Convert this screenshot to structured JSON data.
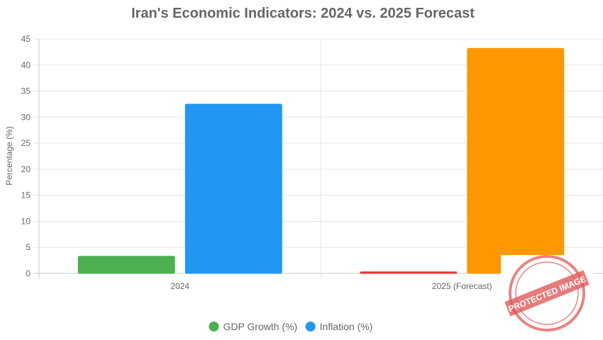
{
  "chart_data": {
    "type": "bar",
    "title": "Iran's Economic Indicators: 2024 vs. 2025 Forecast",
    "xlabel": "",
    "ylabel": "Percentage (%)",
    "categories": [
      "2024",
      "2025 (Forecast)"
    ],
    "ylim": [
      0,
      45
    ],
    "yticks": [
      0,
      5,
      10,
      15,
      20,
      25,
      30,
      35,
      40,
      45
    ],
    "grid": true,
    "legend_position": "bottom",
    "series": [
      {
        "name": "GDP Growth (%)",
        "values": [
          3.3,
          0.3
        ],
        "colors": [
          "#4caf50",
          "#e53935"
        ]
      },
      {
        "name": "Inflation (%)",
        "values": [
          32.5,
          43.2
        ],
        "colors": [
          "#2196f3",
          "#ff9800"
        ]
      }
    ],
    "legend": [
      {
        "label": "GDP Growth (%)",
        "color": "#4caf50"
      },
      {
        "label": "Inflation (%)",
        "color": "#2196f3"
      }
    ]
  },
  "watermark": {
    "stamp_text": "PROTECTED IMAGE",
    "color": "#e05a5a"
  }
}
